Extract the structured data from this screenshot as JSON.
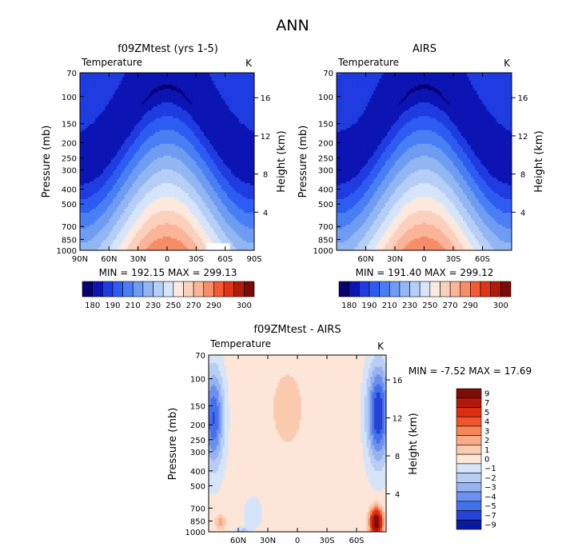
{
  "figure": {
    "title": "ANN"
  },
  "chart_data": [
    {
      "type": "heatmap",
      "title": "f09ZMtest (yrs 1-5)",
      "variable": "Temperature",
      "units": "K",
      "ylabel": "Pressure (mb)",
      "y2label": "Height (km)",
      "minmax_text": "MIN = 192.15   MAX = 299.13",
      "min": 192.15,
      "max": 299.13,
      "x_ticks": [
        "90N",
        "60N",
        "30N",
        "0",
        "30S",
        "60S",
        "90S"
      ],
      "y_ticks": [
        70,
        100,
        150,
        200,
        250,
        300,
        400,
        500,
        700,
        850,
        1000
      ],
      "y2_ticks": [
        16,
        12,
        8,
        4
      ],
      "xlim": [
        90,
        -90
      ],
      "ylim": [
        1000,
        70
      ],
      "levels": [
        180,
        190,
        200,
        210,
        220,
        230,
        240,
        250,
        260,
        270,
        280,
        290,
        300
      ],
      "colorbar_labels": [
        "180",
        "190",
        "210",
        "230",
        "250",
        "270",
        "290",
        "300"
      ],
      "colorbar_orientation": "horizontal"
    },
    {
      "type": "heatmap",
      "title": "AIRS",
      "variable": "Temperature",
      "units": "K",
      "ylabel": "Pressure (mb)",
      "y2label": "Height (km)",
      "minmax_text": "MIN = 191.40   MAX = 299.12",
      "min": 191.4,
      "max": 299.12,
      "x_ticks": [
        "60N",
        "30N",
        "0",
        "30S",
        "60S"
      ],
      "y_ticks": [
        70,
        100,
        150,
        200,
        250,
        300,
        400,
        500,
        700,
        850,
        1000
      ],
      "y2_ticks": [
        16,
        12,
        8,
        4
      ],
      "xlim": [
        90,
        -90
      ],
      "ylim": [
        1000,
        70
      ],
      "levels": [
        180,
        190,
        200,
        210,
        220,
        230,
        240,
        250,
        260,
        270,
        280,
        290,
        300
      ],
      "colorbar_labels": [
        "180",
        "190",
        "210",
        "230",
        "250",
        "270",
        "290",
        "300"
      ],
      "colorbar_orientation": "horizontal"
    },
    {
      "type": "heatmap",
      "title": "f09ZMtest - AIRS",
      "variable": "Temperature",
      "units": "K",
      "ylabel": "Pressure (mb)",
      "y2label": "Height (km)",
      "minmax_text": "MIN =  -7.52   MAX =  17.69",
      "min": -7.52,
      "max": 17.69,
      "x_ticks": [
        "60N",
        "30N",
        "0",
        "30S",
        "60S"
      ],
      "y_ticks": [
        70,
        100,
        150,
        200,
        250,
        300,
        400,
        500,
        700,
        850,
        1000
      ],
      "y2_ticks": [
        16,
        12,
        8,
        4
      ],
      "xlim": [
        90,
        -90
      ],
      "ylim": [
        1000,
        70
      ],
      "levels": [
        -9,
        -7,
        -5,
        -4,
        -3,
        -2,
        -1,
        0,
        1,
        2,
        3,
        4,
        5,
        7,
        9
      ],
      "colorbar_labels": [
        "9",
        "7",
        "5",
        "4",
        "3",
        "2",
        "1",
        "0",
        "-1",
        "-2",
        "-3",
        "-4",
        "-5",
        "-7",
        "-9"
      ],
      "colorbar_orientation": "vertical"
    }
  ],
  "colors": {
    "abs_scale": [
      "#08006e",
      "#0c14b4",
      "#1e3ce0",
      "#2e5cf2",
      "#4a7ef4",
      "#6e9cf2",
      "#92b6f2",
      "#b4cef6",
      "#d6e4fa",
      "#fde8de",
      "#fbd0bc",
      "#fab496",
      "#f78c68",
      "#f45a36",
      "#e23416",
      "#b01c0a",
      "#7c0a06"
    ],
    "diff_scale": [
      "#7e0d06",
      "#b0190c",
      "#dd2e12",
      "#f2542c",
      "#f7865a",
      "#f9ab86",
      "#fbcbb0",
      "#fde6d8",
      "#d6e4f8",
      "#b8cdf4",
      "#96b2f0",
      "#6c8ff0",
      "#4470ee",
      "#2444d6",
      "#0a1a9e"
    ]
  }
}
